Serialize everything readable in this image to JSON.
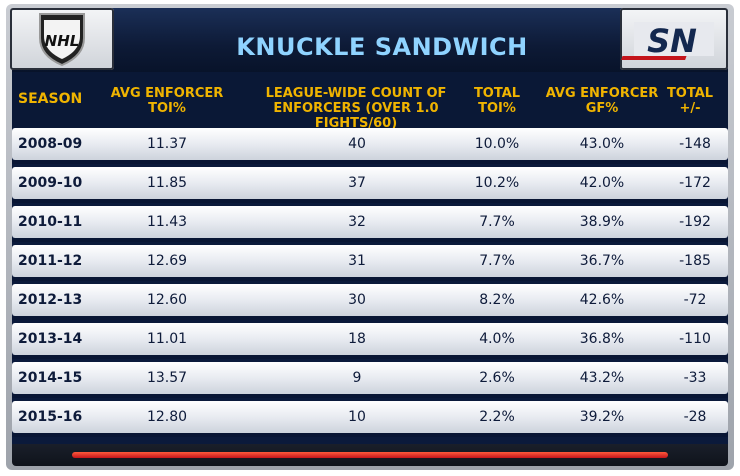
{
  "title": "KNUCKLE SANDWICH",
  "logos": {
    "left": "NHL",
    "right": "SN"
  },
  "headers": [
    "SEASON",
    "AVG ENFORCER TOI%",
    "LEAGUE-WIDE COUNT OF ENFORCERS (OVER 1.0 FIGHTS/60)",
    "TOTAL TOI%",
    "AVG ENFORCER GF%",
    "TOTAL +/-"
  ],
  "rows": [
    {
      "season": "2008-09",
      "toi": "11.37",
      "count": "40",
      "total_toi": "10.0%",
      "gf": "43.0%",
      "pm": "-148"
    },
    {
      "season": "2009-10",
      "toi": "11.85",
      "count": "37",
      "total_toi": "10.2%",
      "gf": "42.0%",
      "pm": "-172"
    },
    {
      "season": "2010-11",
      "toi": "11.43",
      "count": "32",
      "total_toi": "7.7%",
      "gf": "38.9%",
      "pm": "-192"
    },
    {
      "season": "2011-12",
      "toi": "12.69",
      "count": "31",
      "total_toi": "7.7%",
      "gf": "36.7%",
      "pm": "-185"
    },
    {
      "season": "2012-13",
      "toi": "12.60",
      "count": "30",
      "total_toi": "8.2%",
      "gf": "42.6%",
      "pm": "-72"
    },
    {
      "season": "2013-14",
      "toi": "11.01",
      "count": "18",
      "total_toi": "4.0%",
      "gf": "36.8%",
      "pm": "-110"
    },
    {
      "season": "2014-15",
      "toi": "13.57",
      "count": "9",
      "total_toi": "2.6%",
      "gf": "43.2%",
      "pm": "-33"
    },
    {
      "season": "2015-16",
      "toi": "12.80",
      "count": "10",
      "total_toi": "2.2%",
      "gf": "39.2%",
      "pm": "-28"
    }
  ],
  "colors": {
    "header_text": "#f0b400",
    "title_text": "#8fd3ff",
    "panel": "#0b1a3b",
    "accent_red": "#c4141b"
  }
}
